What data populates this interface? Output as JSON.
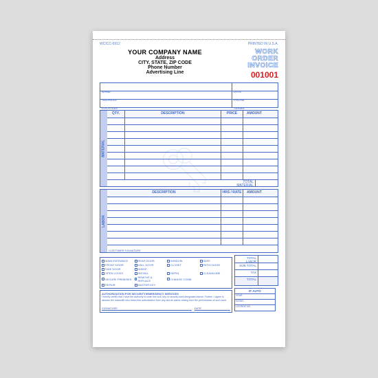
{
  "colors": {
    "form_line": "#4169c4",
    "header_ink": "#111111",
    "wo_outline": "#5a8cd6",
    "invoice_red": "#d81e1e",
    "side_fill": "#c3cef0",
    "paper": "#ffffff",
    "page_bg": "#dddddd"
  },
  "topbar": {
    "left": "WCICC-6912",
    "right": "PRINTED IN U.S.A."
  },
  "company": {
    "name": "YOUR COMPANY NAME",
    "addr": "Address",
    "city": "CITY, STATE, ZIP CODE",
    "phone": "Phone Number",
    "adv": "Advertising Line"
  },
  "wo_title": {
    "line1": "WORK ORDER",
    "line2": "INVOICE"
  },
  "invoice_number": "001001",
  "fields": {
    "name": "NAME",
    "date": "DATE",
    "address": "ADDRESS",
    "phone": "PHONE",
    "location": "LOCATION",
    "terms": "TERMS"
  },
  "material_tbl": {
    "side": "MATERIAL",
    "cols": [
      "QTY.",
      "DESCRIPTION",
      "PRICE",
      "AMOUNT"
    ],
    "widths": [
      26,
      140,
      32,
      32
    ],
    "rows": 9,
    "total_label": "TOTAL MATERIAL"
  },
  "labor_tbl": {
    "side": "LABOR",
    "cols": [
      "DESCRIPTION",
      "HRS / RATE",
      "AMOUNT"
    ],
    "widths": [
      166,
      32,
      32
    ],
    "rows": 7,
    "cust_sig": "CUSTOMER SIGNATURE"
  },
  "totals": {
    "rows": [
      "TOTAL LABOR",
      "SUB-TOTAL",
      "TAX",
      "TOTAL"
    ]
  },
  "checks": [
    "MAIN ENTRANCE",
    "REAR DOOR",
    "WINDOW",
    "SAFE",
    "FRONT DOOR",
    "HALL DOOR",
    "CLOSET",
    "PATIO DOOR",
    "SIDE DOOR",
    "INSIDE",
    "",
    "",
    "OPEN LOCKS",
    "INSTALL",
    "REPIN",
    "CLEAN/LUBE",
    "SECURE PREMISES",
    "REMOVE & REPLACE",
    "CHANGE COMB.",
    "",
    "REPAIR",
    "MASTER KEY",
    "",
    ""
  ],
  "auth": {
    "title": "AUTHORIZATION FOR SECURITY/EMERGENCY SERVICES",
    "body": "I hereby certify that I have the authority to order the lock, key or security work designated above. Further, I agree to absolve the locksmith who bears this authorization from any and all claims arising from the performance of such work.",
    "sig": "SIGNATURE",
    "date": "DATE"
  },
  "ifauto": {
    "header": "IF AUTO",
    "rows": [
      "YEAR",
      "MODEL",
      "LICENSE NO."
    ]
  }
}
